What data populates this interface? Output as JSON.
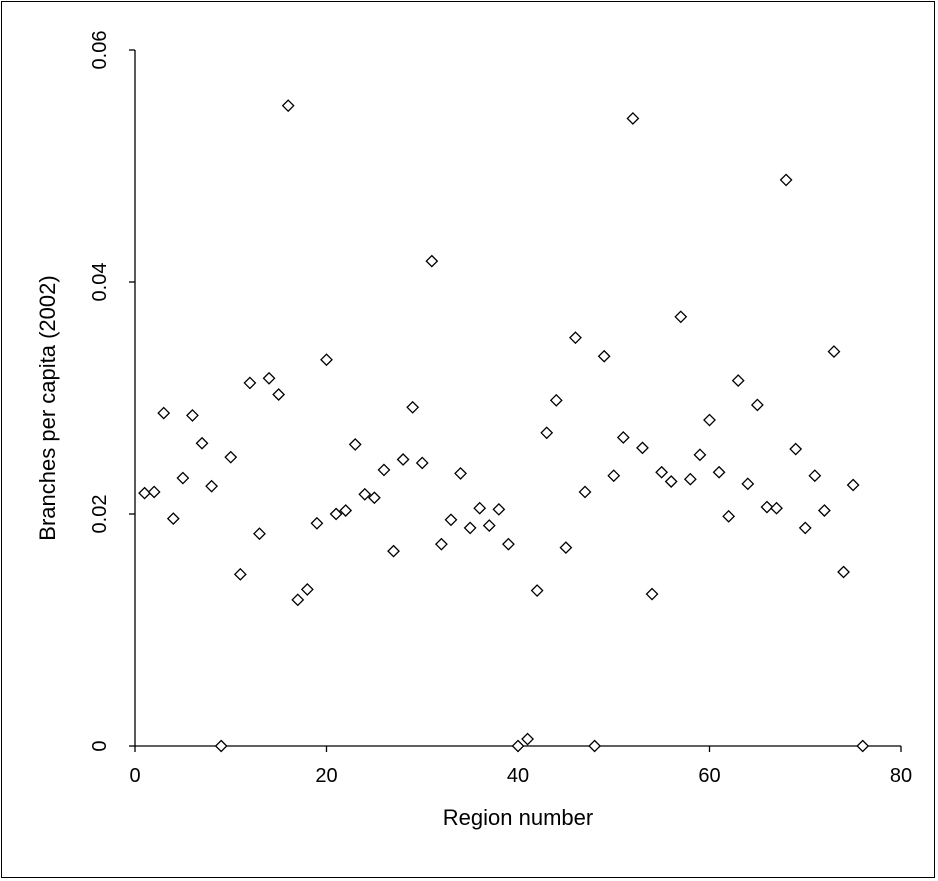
{
  "chart_data": {
    "type": "scatter",
    "xlabel": "Region number",
    "ylabel": "Branches per capita (2002)",
    "xlim": [
      0,
      80
    ],
    "ylim": [
      0,
      0.06
    ],
    "x_ticks": [
      0,
      20,
      40,
      60,
      80
    ],
    "y_ticks": [
      0,
      0.02,
      0.04,
      0.06
    ],
    "x_tick_labels": [
      "0",
      "20",
      "40",
      "60",
      "80"
    ],
    "y_tick_labels": [
      "0",
      "0.02",
      "0.04",
      "0.06"
    ],
    "grid": false,
    "marker": "diamond-open",
    "marker_color": "#000000",
    "points": [
      [
        1,
        0.0218
      ],
      [
        2,
        0.0219
      ],
      [
        3,
        0.0287
      ],
      [
        4,
        0.0196
      ],
      [
        5,
        0.0231
      ],
      [
        6,
        0.0285
      ],
      [
        7,
        0.0261
      ],
      [
        8,
        0.0224
      ],
      [
        9,
        0.0
      ],
      [
        10,
        0.0249
      ],
      [
        11,
        0.0148
      ],
      [
        12,
        0.0313
      ],
      [
        13,
        0.0183
      ],
      [
        14,
        0.0317
      ],
      [
        15,
        0.0303
      ],
      [
        16,
        0.0552
      ],
      [
        17,
        0.0126
      ],
      [
        18,
        0.0135
      ],
      [
        19,
        0.0192
      ],
      [
        20,
        0.0333
      ],
      [
        21,
        0.02
      ],
      [
        22,
        0.0203
      ],
      [
        23,
        0.026
      ],
      [
        24,
        0.0217
      ],
      [
        25,
        0.0214
      ],
      [
        26,
        0.0238
      ],
      [
        27,
        0.0168
      ],
      [
        28,
        0.0247
      ],
      [
        29,
        0.0292
      ],
      [
        30,
        0.0244
      ],
      [
        31,
        0.0418
      ],
      [
        32,
        0.0174
      ],
      [
        33,
        0.0195
      ],
      [
        34,
        0.0235
      ],
      [
        35,
        0.0188
      ],
      [
        36,
        0.0205
      ],
      [
        37,
        0.019
      ],
      [
        38,
        0.0204
      ],
      [
        39,
        0.0174
      ],
      [
        40,
        0.0
      ],
      [
        41,
        0.0006
      ],
      [
        42,
        0.0134
      ],
      [
        43,
        0.027
      ],
      [
        44,
        0.0298
      ],
      [
        45,
        0.0171
      ],
      [
        46,
        0.0352
      ],
      [
        47,
        0.0219
      ],
      [
        48,
        0.0
      ],
      [
        49,
        0.0336
      ],
      [
        50,
        0.0233
      ],
      [
        51,
        0.0266
      ],
      [
        52,
        0.0541
      ],
      [
        53,
        0.0257
      ],
      [
        54,
        0.0131
      ],
      [
        55,
        0.0236
      ],
      [
        56,
        0.0228
      ],
      [
        57,
        0.037
      ],
      [
        58,
        0.023
      ],
      [
        59,
        0.0251
      ],
      [
        60,
        0.0281
      ],
      [
        61,
        0.0236
      ],
      [
        62,
        0.0198
      ],
      [
        63,
        0.0315
      ],
      [
        64,
        0.0226
      ],
      [
        65,
        0.0294
      ],
      [
        66,
        0.0206
      ],
      [
        67,
        0.0205
      ],
      [
        68,
        0.0488
      ],
      [
        69,
        0.0256
      ],
      [
        70,
        0.0188
      ],
      [
        71,
        0.0233
      ],
      [
        72,
        0.0203
      ],
      [
        73,
        0.034
      ],
      [
        74,
        0.015
      ],
      [
        75,
        0.0225
      ],
      [
        76,
        0.0
      ]
    ]
  }
}
